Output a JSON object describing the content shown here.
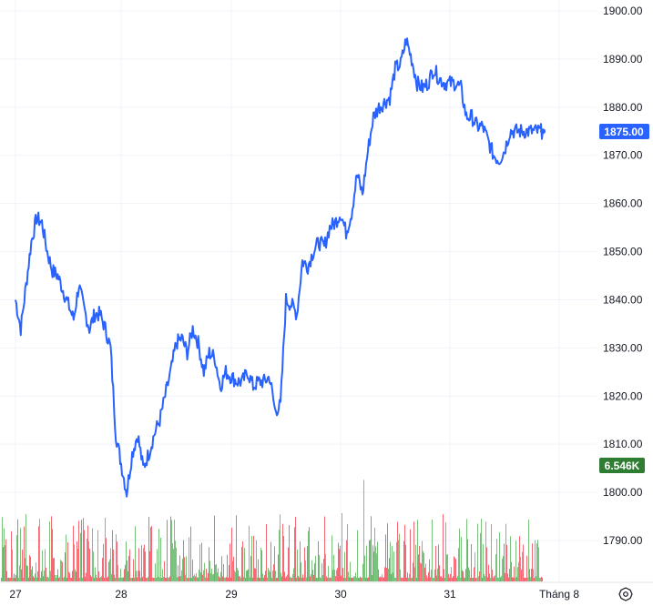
{
  "chart_data": {
    "type": "line",
    "title": "",
    "xlabel": "",
    "ylabel": "",
    "ylim": [
      1782,
      1902
    ],
    "y_ticks": [
      "1900.00",
      "1890.00",
      "1880.00",
      "1870.00",
      "1860.00",
      "1850.00",
      "1840.00",
      "1830.00",
      "1820.00",
      "1810.00",
      "1800.00",
      "1790.00"
    ],
    "x_ticks": [
      "27",
      "28",
      "29",
      "30",
      "31",
      "Tháng 8"
    ],
    "series": [
      {
        "x": [
          0,
          0.05,
          0.1,
          0.15,
          0.2,
          0.25,
          0.3,
          0.35,
          0.4,
          0.45,
          0.5,
          0.55,
          0.6,
          0.65,
          0.7,
          0.75,
          0.8,
          0.85,
          0.9,
          0.95,
          1.0,
          1.05,
          1.1,
          1.15,
          1.2,
          1.25,
          1.3,
          1.35,
          1.4,
          1.45,
          1.5,
          1.55,
          1.6,
          1.65,
          1.7,
          1.75,
          1.8,
          1.85,
          1.9,
          1.95,
          2.0,
          2.05,
          2.1,
          2.15,
          2.2,
          2.25,
          2.3,
          2.35,
          2.4,
          2.45,
          2.5,
          2.55,
          2.6,
          2.65,
          2.7,
          2.75,
          2.8,
          2.85,
          2.9,
          2.95,
          3.0,
          3.05,
          3.1,
          3.15,
          3.2,
          3.25,
          3.3,
          3.35,
          3.4,
          3.45,
          3.5,
          3.55,
          3.6,
          3.65,
          3.7,
          3.75,
          3.8,
          3.85,
          3.9,
          3.95,
          4.0,
          4.05,
          4.1,
          4.15,
          4.2,
          4.25,
          4.3,
          4.35,
          4.4,
          4.45,
          4.5,
          4.55,
          4.6,
          4.65,
          4.7,
          4.75,
          4.8,
          4.85,
          4.9,
          4.95,
          5.0,
          5.05,
          5.1,
          5.15
        ],
        "values": [
          1840,
          1834,
          1843,
          1852,
          1857,
          1856,
          1850,
          1846,
          1845,
          1842,
          1839,
          1836,
          1843,
          1838,
          1834,
          1837,
          1837,
          1834,
          1830,
          1812,
          1806,
          1800,
          1808,
          1812,
          1805,
          1808,
          1812,
          1815,
          1820,
          1825,
          1831,
          1832,
          1829,
          1834,
          1831,
          1825,
          1829,
          1828,
          1822,
          1825,
          1824,
          1823,
          1823,
          1825,
          1822,
          1823,
          1823,
          1824,
          1817,
          1818,
          1840,
          1839,
          1837,
          1848,
          1847,
          1850,
          1852,
          1851,
          1855,
          1856,
          1858,
          1854,
          1858,
          1866,
          1862,
          1871,
          1878,
          1880,
          1881,
          1882,
          1888,
          1889,
          1894,
          1890,
          1885,
          1884,
          1885,
          1888,
          1886,
          1885,
          1885,
          1885,
          1884,
          1878,
          1878,
          1876,
          1876,
          1873,
          1870,
          1869,
          1871,
          1875,
          1875,
          1875,
          1875,
          1875,
          1875,
          1875,
          1875,
          1875,
          1875,
          1875,
          1875,
          1875
        ]
      }
    ],
    "last_price": "1875.00",
    "volume_label": "6.546K",
    "colors": {
      "line": "#2962ff",
      "vol_up": "#4caf50",
      "vol_down": "#f23645",
      "badge_price": "#2962ff",
      "badge_volume": "#2e7d32",
      "grid": "#f0f3fa"
    }
  }
}
